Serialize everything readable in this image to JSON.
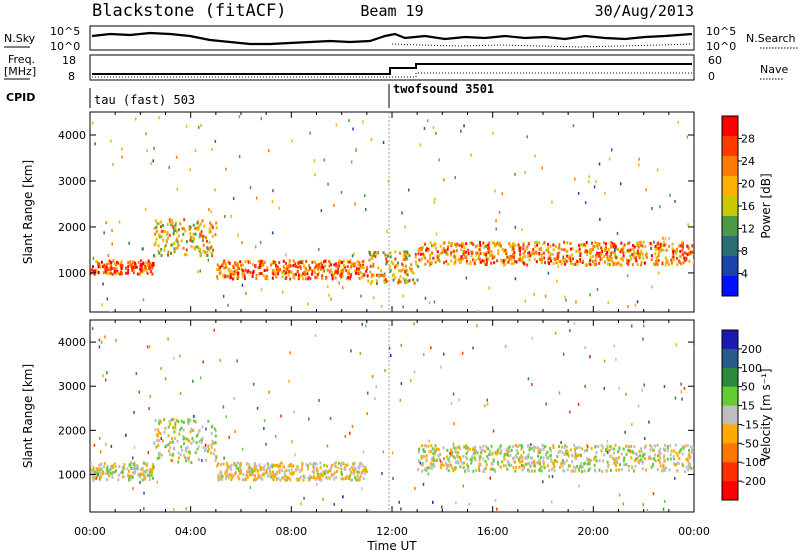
{
  "header": {
    "site": "Blackstone (fitACF)",
    "beam": "Beam 19",
    "date": "30/Aug/2013"
  },
  "top_panels": {
    "nsky_label": "N.Sky",
    "nsky_ticks": [
      "10^5",
      "10^0"
    ],
    "nsearch_label": "N.Search",
    "freq_label": "Freq.",
    "freq_unit": "[MHz]",
    "freq_ticks": [
      "18",
      "8"
    ],
    "nave_label": "Nave",
    "nave_ticks": [
      "60",
      "0"
    ],
    "cpid_label": "CPID",
    "programs": [
      "tau (fast) 503",
      "twofsound 3501"
    ]
  },
  "colorbars": {
    "power": {
      "label": "Power [dB]",
      "ticks": [
        "28",
        "24",
        "20",
        "16",
        "12",
        "8",
        "4"
      ],
      "colors": [
        "#ff0000",
        "#ff3a00",
        "#ff7a00",
        "#ffb000",
        "#c8c800",
        "#4c9a46",
        "#2a6e75",
        "#1a45a8",
        "#0010ff"
      ]
    },
    "velocity": {
      "label": "Velocity [m s⁻¹]",
      "ticks": [
        "200",
        "100",
        "50",
        "15",
        "-15",
        "-50",
        "-100",
        "-200"
      ],
      "colors": [
        "#1a1ab0",
        "#2a5a8a",
        "#2e8a3a",
        "#66cc33",
        "#bebebe",
        "#ffaa00",
        "#ff7700",
        "#ff3000",
        "#ff0000"
      ]
    }
  },
  "x_axis": {
    "title": "Time UT",
    "ticks": [
      "00:00",
      "04:00",
      "08:00",
      "12:00",
      "16:00",
      "20:00",
      "00:00"
    ]
  },
  "chart_data": [
    {
      "type": "heatmap",
      "title": "Power",
      "xlabel": "Time UT",
      "ylabel": "Slant Range [km]",
      "xlim": [
        "00:00",
        "24:00"
      ],
      "ylim": [
        150,
        4500
      ],
      "yticks": [
        1000,
        2000,
        3000,
        4000
      ],
      "colorbar": "Power [dB]",
      "bands": [
        {
          "start": "00:00",
          "end": "02:30",
          "range_start_km": 1000,
          "range_end_km": 1300,
          "value_db": 26
        },
        {
          "start": "02:30",
          "end": "05:00",
          "range_start_km": 1400,
          "range_end_km": 2200,
          "value_db": 18
        },
        {
          "start": "05:00",
          "end": "11:00",
          "range_start_km": 900,
          "range_end_km": 1300,
          "value_db": 24
        },
        {
          "start": "11:00",
          "end": "13:00",
          "range_start_km": 800,
          "range_end_km": 1500,
          "value_db": 18
        },
        {
          "start": "13:00",
          "end": "24:00",
          "range_start_km": 1200,
          "range_end_km": 1700,
          "value_db": 22
        }
      ]
    },
    {
      "type": "heatmap",
      "title": "Velocity",
      "xlabel": "Time UT",
      "ylabel": "Slant Range [km]",
      "xlim": [
        "00:00",
        "24:00"
      ],
      "ylim": [
        150,
        4500
      ],
      "yticks": [
        1000,
        2000,
        3000,
        4000
      ],
      "colorbar": "Velocity [m s-1]",
      "bands": [
        {
          "start": "00:00",
          "end": "02:30",
          "range_start_km": 900,
          "range_end_km": 1300,
          "value_ms": 0
        },
        {
          "start": "02:30",
          "end": "05:00",
          "range_start_km": 1300,
          "range_end_km": 2300,
          "value_ms": 5
        },
        {
          "start": "05:00",
          "end": "11:00",
          "range_start_km": 900,
          "range_end_km": 1300,
          "value_ms": -20
        },
        {
          "start": "13:00",
          "end": "24:00",
          "range_start_km": 1100,
          "range_end_km": 1700,
          "value_ms": 0
        }
      ]
    }
  ]
}
